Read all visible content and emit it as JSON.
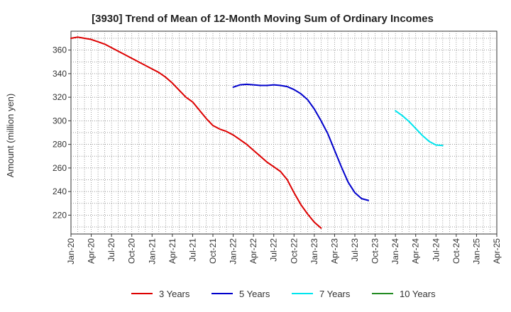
{
  "chart_data": {
    "type": "line",
    "title": "[3930]  Trend of Mean of 12-Month Moving Sum of Ordinary Incomes",
    "xlabel": "",
    "ylabel": "Amount (million yen)",
    "ylim": [
      204,
      376
    ],
    "yticks": [
      220,
      240,
      260,
      280,
      300,
      320,
      340,
      360
    ],
    "x_tick_labels": [
      "Jan-20",
      "Apr-20",
      "Jul-20",
      "Oct-20",
      "Jan-21",
      "Apr-21",
      "Jul-21",
      "Oct-21",
      "Jan-22",
      "Apr-22",
      "Jul-22",
      "Oct-22",
      "Jan-23",
      "Apr-23",
      "Jul-23",
      "Oct-23",
      "Jan-24",
      "Apr-24",
      "Jul-24",
      "Oct-24",
      "Jan-25",
      "Apr-25"
    ],
    "grid": true,
    "legend_position": "bottom",
    "series": [
      {
        "name": "3 Years",
        "color": "#dd0000",
        "start": "Jan-20",
        "values": [
          370,
          371,
          370,
          369,
          367,
          365,
          362,
          359,
          356,
          353,
          350,
          347,
          344,
          341,
          337,
          332,
          326,
          320,
          316,
          309,
          302,
          296,
          293,
          291,
          288,
          284,
          280,
          275,
          270,
          265,
          261,
          257,
          250,
          239,
          229,
          221,
          214,
          209
        ]
      },
      {
        "name": "5 Years",
        "color": "#0000cc",
        "start": "Jan-22",
        "values": [
          328.5,
          330.5,
          331,
          330.5,
          330,
          330,
          330.5,
          330,
          329,
          326.5,
          323,
          318,
          310,
          300,
          289,
          275,
          261,
          248,
          239,
          234,
          232.5
        ]
      },
      {
        "name": "7 Years",
        "color": "#00e5ee",
        "start": "Jan-24",
        "values": [
          308.5,
          304.5,
          299.5,
          293.5,
          287.5,
          282.5,
          279.5,
          279
        ]
      },
      {
        "name": "10 Years",
        "color": "#228b22",
        "start": "",
        "values": []
      }
    ]
  }
}
